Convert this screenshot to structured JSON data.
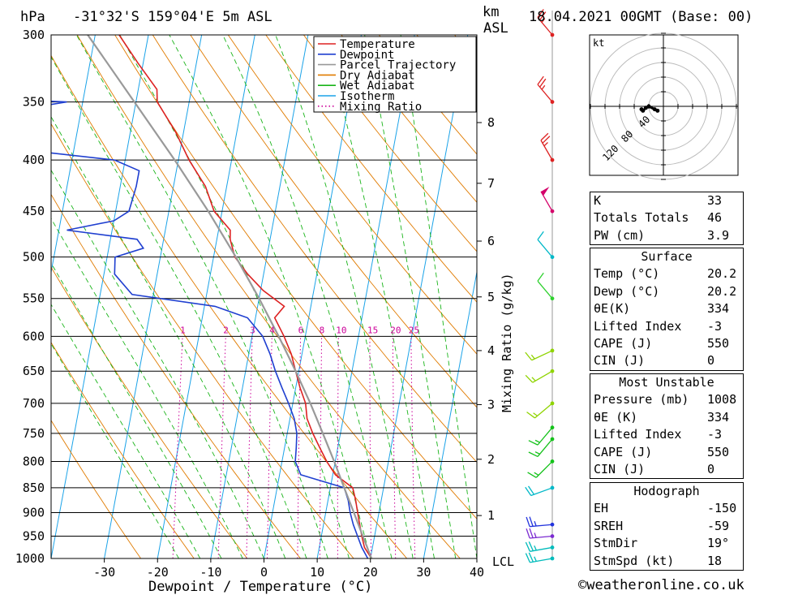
{
  "header": {
    "location": "-31°32'S 159°04'E 5m ASL",
    "date": "18.04.2021 00GMT (Base: 00)",
    "pressure_unit": "hPa",
    "height_unit": "km",
    "height_ref": "ASL"
  },
  "axes": {
    "xlabel": "Dewpoint / Temperature (°C)",
    "mixing_label": "Mixing Ratio (g/kg)",
    "lcl_label": "LCL"
  },
  "legend": [
    {
      "label": "Temperature",
      "color": "#dd2222",
      "style": "solid"
    },
    {
      "label": "Dewpoint",
      "color": "#1f3fd0",
      "style": "solid"
    },
    {
      "label": "Parcel Trajectory",
      "color": "#999999",
      "style": "solid"
    },
    {
      "label": "Dry Adiabat",
      "color": "#e07b00",
      "style": "solid"
    },
    {
      "label": "Wet Adiabat",
      "color": "#19b419",
      "style": "solid"
    },
    {
      "label": "Isotherm",
      "color": "#1ba3e8",
      "style": "solid"
    },
    {
      "label": "Mixing Ratio",
      "color": "#cc0099",
      "style": "dotted"
    }
  ],
  "chart_data": {
    "type": "skew-t",
    "title": "-31°32'S 159°04'E 5m ASL",
    "xlabel": "Dewpoint / Temperature (°C)",
    "ylabel": "hPa",
    "xlim": [
      -40,
      40
    ],
    "ylim": [
      1000,
      300
    ],
    "y_scale": "log",
    "pressure_levels": [
      300,
      350,
      400,
      450,
      500,
      550,
      600,
      650,
      700,
      750,
      800,
      850,
      900,
      950,
      1000
    ],
    "temperature_ticks": [
      -30,
      -20,
      -10,
      0,
      10,
      20,
      30,
      40
    ],
    "height_km_ticks": [
      {
        "km": "1",
        "p": 906
      },
      {
        "km": "2",
        "p": 796
      },
      {
        "km": "3",
        "p": 702
      },
      {
        "km": "4",
        "p": 620
      },
      {
        "km": "5",
        "p": 548
      },
      {
        "km": "6",
        "p": 482
      },
      {
        "km": "7",
        "p": 422
      },
      {
        "km": "8",
        "p": 367
      }
    ],
    "mixing_ratio_labels": [
      "1",
      "2",
      "3",
      "4",
      "6",
      "8",
      "10",
      "15",
      "20",
      "25"
    ],
    "mixing_ratio_values": [
      1,
      2,
      3,
      4,
      6,
      8,
      10,
      15,
      20,
      25
    ],
    "series": [
      {
        "name": "Temperature",
        "color": "#dd2222",
        "points": [
          [
            1000,
            20.2
          ],
          [
            975,
            18.5
          ],
          [
            950,
            17.6
          ],
          [
            925,
            16.8
          ],
          [
            900,
            16.0
          ],
          [
            875,
            15.2
          ],
          [
            850,
            14.2
          ],
          [
            825,
            10.5
          ],
          [
            800,
            8.4
          ],
          [
            775,
            6.6
          ],
          [
            750,
            4.8
          ],
          [
            725,
            3.2
          ],
          [
            700,
            2.4
          ],
          [
            675,
            0.8
          ],
          [
            650,
            -0.6
          ],
          [
            625,
            -2.0
          ],
          [
            600,
            -4.0
          ],
          [
            575,
            -6.4
          ],
          [
            560,
            -5.0
          ],
          [
            540,
            -9.5
          ],
          [
            520,
            -13.0
          ],
          [
            500,
            -16.0
          ],
          [
            480,
            -17.5
          ],
          [
            470,
            -17.8
          ],
          [
            450,
            -21.5
          ],
          [
            425,
            -24.0
          ],
          [
            400,
            -28.0
          ],
          [
            375,
            -31.5
          ],
          [
            350,
            -36.0
          ],
          [
            340,
            -36.5
          ],
          [
            320,
            -41.0
          ],
          [
            300,
            -45.5
          ]
        ]
      },
      {
        "name": "Dewpoint",
        "color": "#1f3fd0",
        "points": [
          [
            1000,
            19.5
          ],
          [
            975,
            18.0
          ],
          [
            950,
            16.8
          ],
          [
            925,
            15.6
          ],
          [
            900,
            14.6
          ],
          [
            875,
            13.8
          ],
          [
            850,
            12.6
          ],
          [
            825,
            4.0
          ],
          [
            800,
            2.5
          ],
          [
            775,
            2.2
          ],
          [
            750,
            1.8
          ],
          [
            725,
            0.8
          ],
          [
            700,
            -0.8
          ],
          [
            675,
            -2.6
          ],
          [
            650,
            -4.4
          ],
          [
            625,
            -6.0
          ],
          [
            600,
            -8.0
          ],
          [
            575,
            -11.5
          ],
          [
            560,
            -18.0
          ],
          [
            545,
            -34.0
          ],
          [
            520,
            -38.0
          ],
          [
            500,
            -38.5
          ],
          [
            490,
            -33.5
          ],
          [
            480,
            -35.0
          ],
          [
            470,
            -48.5
          ],
          [
            460,
            -40.0
          ],
          [
            450,
            -37.5
          ],
          [
            425,
            -37.0
          ],
          [
            410,
            -37.0
          ],
          [
            400,
            -42.0
          ],
          [
            388,
            -65.0
          ],
          [
            375,
            -59.0
          ],
          [
            365,
            -74.0
          ],
          [
            350,
            -53.0
          ],
          [
            345,
            -80.0
          ],
          [
            340,
            -65.0
          ],
          [
            325,
            -58.0
          ],
          [
            300,
            -70.0
          ]
        ]
      },
      {
        "name": "Parcel Trajectory",
        "color": "#999999",
        "points": [
          [
            1000,
            20.2
          ],
          [
            950,
            17.8
          ],
          [
            900,
            15.3
          ],
          [
            850,
            12.6
          ],
          [
            800,
            9.8
          ],
          [
            750,
            6.7
          ],
          [
            700,
            3.3
          ],
          [
            650,
            -0.6
          ],
          [
            600,
            -5.0
          ],
          [
            550,
            -10.0
          ],
          [
            500,
            -15.8
          ],
          [
            450,
            -22.6
          ],
          [
            400,
            -30.7
          ],
          [
            350,
            -40.3
          ],
          [
            300,
            -51.4
          ]
        ]
      }
    ],
    "wind_barbs": [
      {
        "p": 1000,
        "spd": 25,
        "dir": 260
      },
      {
        "p": 975,
        "spd": 25,
        "dir": 260
      },
      {
        "p": 950,
        "spd": 25,
        "dir": 265
      },
      {
        "p": 925,
        "spd": 25,
        "dir": 265
      },
      {
        "p": 850,
        "spd": 20,
        "dir": 250
      },
      {
        "p": 800,
        "spd": 15,
        "dir": 225
      },
      {
        "p": 760,
        "spd": 15,
        "dir": 220
      },
      {
        "p": 740,
        "spd": 15,
        "dir": 220
      },
      {
        "p": 700,
        "spd": 15,
        "dir": 230
      },
      {
        "p": 650,
        "spd": 15,
        "dir": 240
      },
      {
        "p": 620,
        "spd": 15,
        "dir": 245
      },
      {
        "p": 550,
        "spd": 10,
        "dir": 320
      },
      {
        "p": 500,
        "spd": 10,
        "dir": 320
      },
      {
        "p": 450,
        "spd": 50,
        "dir": 330
      },
      {
        "p": 400,
        "spd": 25,
        "dir": 330
      },
      {
        "p": 350,
        "spd": 25,
        "dir": 320
      },
      {
        "p": 300,
        "spd": 25,
        "dir": 320
      }
    ],
    "hodograph": {
      "unit": "kt",
      "ring_labels": [
        "40",
        "80",
        "120"
      ],
      "points": [
        [
          -4,
          3
        ],
        [
          -6,
          2
        ],
        [
          -10,
          0
        ],
        [
          -12,
          1
        ],
        [
          -14,
          3
        ],
        [
          -15,
          2
        ]
      ]
    }
  },
  "indices": {
    "general": [
      {
        "k": "K",
        "v": "33"
      },
      {
        "k": "Totals Totals",
        "v": "46"
      },
      {
        "k": "PW (cm)",
        "v": "3.9"
      }
    ],
    "surface_title": "Surface",
    "surface": [
      {
        "k": "Temp (°C)",
        "v": "20.2"
      },
      {
        "k": "Dewp (°C)",
        "v": "20.2"
      },
      {
        "k": "θE(K)",
        "v": "334"
      },
      {
        "k": "Lifted Index",
        "v": "-3"
      },
      {
        "k": "CAPE (J)",
        "v": "550"
      },
      {
        "k": "CIN (J)",
        "v": "0"
      }
    ],
    "unstable_title": "Most Unstable",
    "unstable": [
      {
        "k": "Pressure (mb)",
        "v": "1008"
      },
      {
        "k": "θE (K)",
        "v": "334"
      },
      {
        "k": "Lifted Index",
        "v": "-3"
      },
      {
        "k": "CAPE (J)",
        "v": "550"
      },
      {
        "k": "CIN (J)",
        "v": "0"
      }
    ],
    "hodo_title": "Hodograph",
    "hodo": [
      {
        "k": "EH",
        "v": "-150"
      },
      {
        "k": "SREH",
        "v": "-59"
      },
      {
        "k": "StmDir",
        "v": "19°"
      },
      {
        "k": "StmSpd (kt)",
        "v": "18"
      }
    ]
  },
  "copyright": "©weatheronline.co.uk"
}
